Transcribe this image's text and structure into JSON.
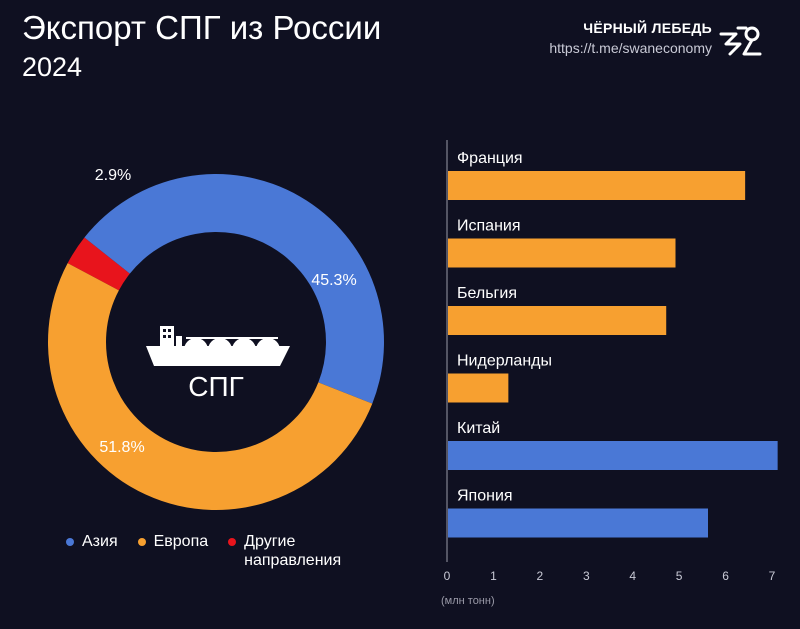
{
  "header": {
    "title": "Экспорт СПГ из России",
    "subtitle": "2024",
    "brand_name": "ЧЁРНЫЙ ЛЕБЕДЬ",
    "brand_url": "https://t.me/swaneconomy"
  },
  "donut": {
    "center_label": "СПГ",
    "center_icon": "lng-tanker-ship-icon"
  },
  "colors": {
    "asia": "#4a78d6",
    "europe": "#f7a030",
    "other": "#e8141c",
    "background": "#0f1021"
  },
  "legend": [
    {
      "label": "Азия",
      "color": "#4a78d6"
    },
    {
      "label": "Европа",
      "color": "#f7a030"
    },
    {
      "label": "Другие направления",
      "color": "#e8141c"
    }
  ],
  "chart_data": [
    {
      "type": "pie",
      "title": "",
      "categories": [
        "Азия",
        "Европа",
        "Другие направления"
      ],
      "values": [
        45.3,
        51.8,
        2.9
      ],
      "value_labels": [
        "45.3%",
        "51.8%",
        "2.9%"
      ],
      "colors": [
        "#4a78d6",
        "#f7a030",
        "#e8141c"
      ],
      "legend_position": "bottom"
    },
    {
      "type": "bar",
      "orientation": "horizontal",
      "title": "",
      "categories": [
        "Франция",
        "Испания",
        "Бельгия",
        "Нидерланды",
        "Китай",
        "Япония"
      ],
      "values": [
        6.4,
        4.9,
        4.7,
        1.3,
        7.1,
        5.6
      ],
      "colors": [
        "#f7a030",
        "#f7a030",
        "#f7a030",
        "#f7a030",
        "#4a78d6",
        "#4a78d6"
      ],
      "xlabel": "(млн тонн)",
      "xlim": [
        0,
        7
      ],
      "xticks": [
        "0",
        "1",
        "2",
        "3",
        "4",
        "5",
        "6",
        "7"
      ],
      "grid": false
    }
  ]
}
